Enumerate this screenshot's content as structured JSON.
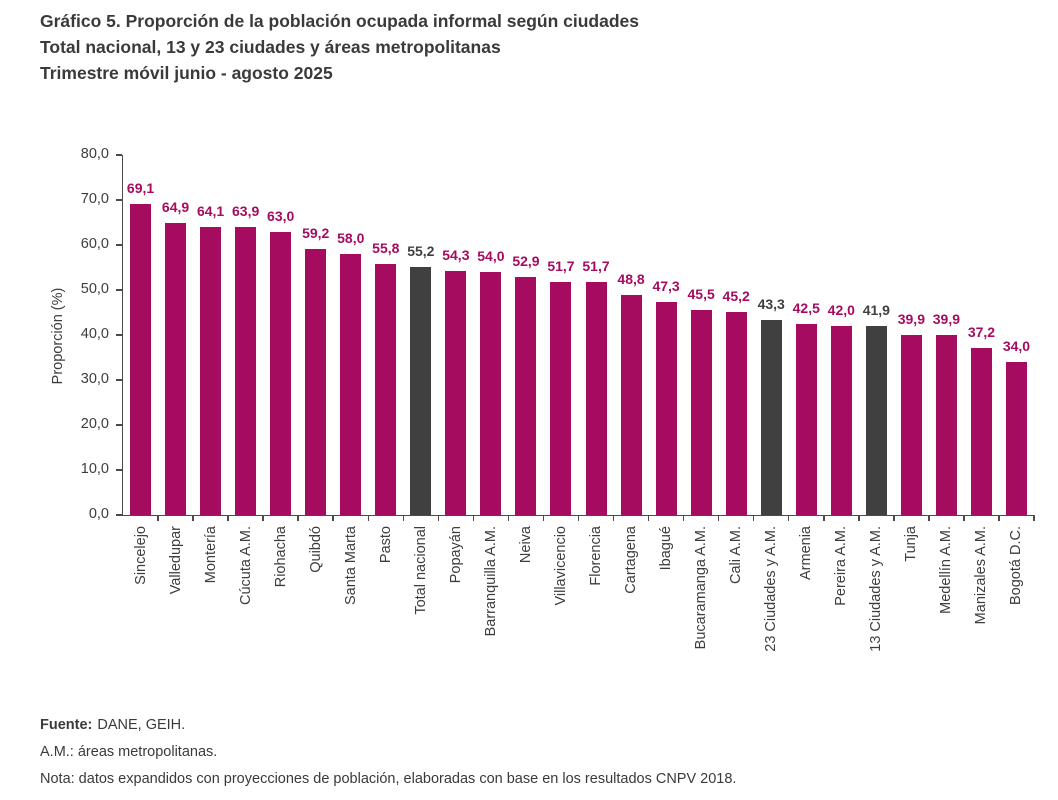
{
  "header": {
    "title_line1": "Gráfico 5. Proporción de la población ocupada informal según ciudades",
    "title_line2": "Total nacional, 13 y 23 ciudades y áreas metropolitanas",
    "title_line3": "Trimestre móvil junio - agosto 2025"
  },
  "chart_data": {
    "type": "bar",
    "title": "Gráfico 5. Proporción de la población ocupada informal según ciudades",
    "subtitle": "Total nacional, 13 y 23 ciudades y áreas metropolitanas",
    "period": "Trimestre móvil junio - agosto 2025",
    "xlabel": "",
    "ylabel": "Proporción (%)",
    "ylim": [
      0,
      80
    ],
    "ytick_step": 10,
    "decimal_separator": ",",
    "grid": false,
    "legend": false,
    "categories": [
      "Sincelejo",
      "Valledupar",
      "Montería",
      "Cúcuta A.M.",
      "Riohacha",
      "Quibdó",
      "Santa Marta",
      "Pasto",
      "Total nacional",
      "Popayán",
      "Barranquilla A.M.",
      "Neiva",
      "Villavicencio",
      "Florencia",
      "Cartagena",
      "Ibagué",
      "Bucaramanga A.M.",
      "Cali A.M.",
      "23 Ciudades y A.M.",
      "Armenia",
      "Pereira A.M.",
      "13 Ciudades y A.M.",
      "Tunja",
      "Medellín A.M.",
      "Manizales A.M.",
      "Bogotá D.C."
    ],
    "values": [
      69.1,
      64.9,
      64.1,
      63.9,
      63.0,
      59.2,
      58.0,
      55.8,
      55.2,
      54.3,
      54.0,
      52.9,
      51.7,
      51.7,
      48.8,
      47.3,
      45.5,
      45.2,
      43.3,
      42.5,
      42.0,
      41.9,
      39.9,
      39.9,
      37.2,
      34.0
    ],
    "highlight_indices": [
      8,
      18,
      21
    ],
    "bar_color": "#A50B5E",
    "highlight_color": "#404040",
    "axis_color": "#4a4a4a"
  },
  "footer": {
    "fuente_label": "Fuente:",
    "fuente_text": "DANE, GEIH.",
    "am_note": "A.M.: áreas metropolitanas.",
    "nota": "Nota: datos expandidos con proyecciones de población, elaboradas con base en los resultados CNPV 2018."
  }
}
